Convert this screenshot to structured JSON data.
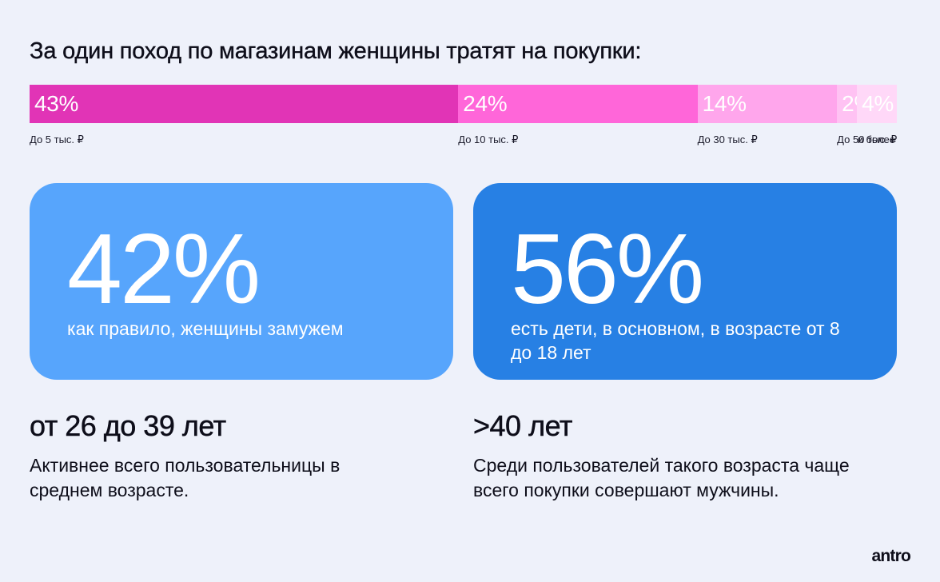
{
  "title": "За один поход по магазинам женщины тратят на покупки:",
  "chart_data": {
    "type": "bar",
    "orientation": "horizontal-stacked",
    "total": 87,
    "segments": [
      {
        "value": 43,
        "label": "43%",
        "tick": "До 5 тыс. ₽",
        "color": "#e134b6"
      },
      {
        "value": 24,
        "label": "24%",
        "tick": "До 10 тыс. ₽",
        "color": "#ff66d9"
      },
      {
        "value": 14,
        "label": "14%",
        "tick": "До 30 тыс. ₽",
        "color": "#ffa6ec"
      },
      {
        "value": 2,
        "label": "2%",
        "tick": "До 50 тыс. ₽",
        "color": "#ffc2f3"
      },
      {
        "value": 4,
        "label": "4%",
        "tick": "и более",
        "color": "#ffd8f8"
      }
    ]
  },
  "cards": [
    {
      "big": "42%",
      "desc": "как правило, женщины замужем",
      "color": "#57a5fc"
    },
    {
      "big": "56%",
      "desc": "есть дети, в основном, в возрасте от 8 до 18 лет",
      "color": "#2780e4"
    }
  ],
  "groups": [
    {
      "age": "от 26 до 39 лет",
      "note": "Активнее всего пользовательницы в среднем возрасте."
    },
    {
      "age": ">40 лет",
      "note": "Среди пользователей такого возраста чаще всего покупки совершают мужчины."
    }
  ],
  "logo": "antro"
}
